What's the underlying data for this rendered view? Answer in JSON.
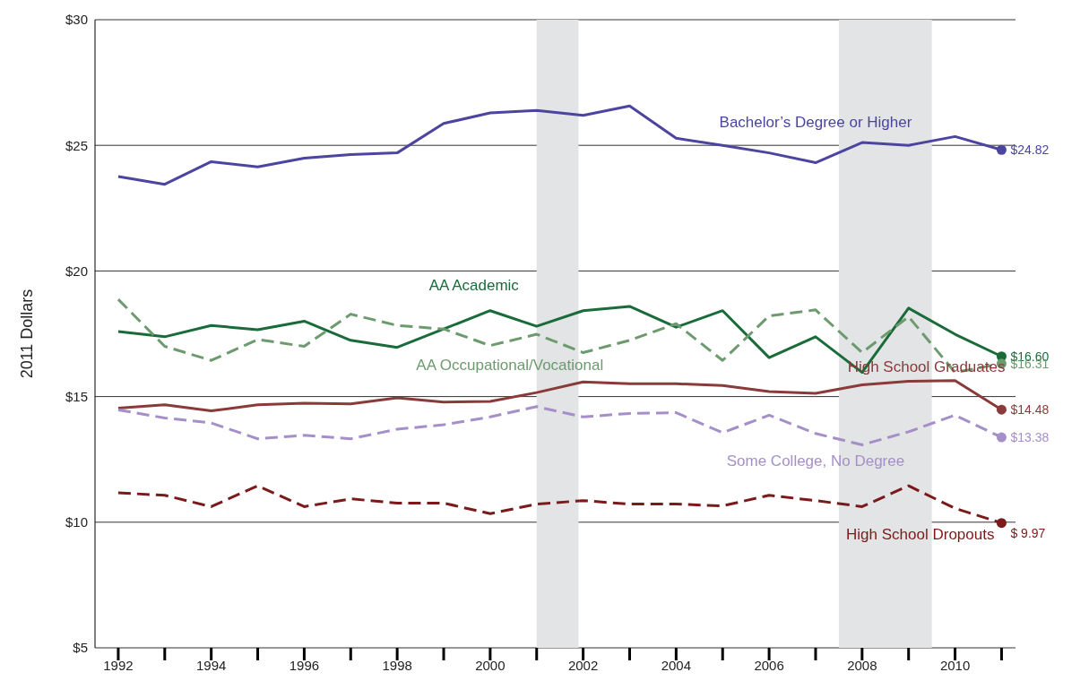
{
  "chart_data": {
    "type": "line",
    "ylabel": "2011 Dollars",
    "x": [
      1992,
      1993,
      1994,
      1995,
      1996,
      1997,
      1998,
      1999,
      2000,
      2001,
      2002,
      2003,
      2004,
      2005,
      2006,
      2007,
      2008,
      2009,
      2010,
      2011
    ],
    "xlim": [
      1991.5,
      2011.3
    ],
    "xticks": [
      1992,
      {
        "value": 1993,
        "label": null
      },
      1994,
      {
        "value": 1995,
        "label": null
      },
      1996,
      {
        "value": 1997,
        "label": null
      },
      1998,
      {
        "value": 1999,
        "label": null
      },
      2000,
      {
        "value": 2001,
        "label": null
      },
      2002,
      {
        "value": 2003,
        "label": null
      },
      2004,
      {
        "value": 2005,
        "label": null
      },
      2006,
      {
        "value": 2007,
        "label": null
      },
      2008,
      {
        "value": 2009,
        "label": null
      },
      2010,
      {
        "value": 2011,
        "label": null
      }
    ],
    "ylim": [
      5,
      30
    ],
    "yticks": [
      {
        "value": 5,
        "label": "$5"
      },
      {
        "value": 10,
        "label": "$10"
      },
      {
        "value": 15,
        "label": "$15"
      },
      {
        "value": 20,
        "label": "$20"
      },
      {
        "value": 25,
        "label": "$25"
      },
      {
        "value": 30,
        "label": "$30"
      }
    ],
    "grid": "y",
    "legend": false,
    "bands": [
      {
        "axis": "x",
        "from": 2001,
        "to": 2001.9,
        "color": "#e3e4e5"
      },
      {
        "axis": "x",
        "from": 2007.5,
        "to": 2009.5,
        "color": "#e3e4e5"
      }
    ],
    "series": [
      {
        "name": "Bachelor’s Degree or Higher",
        "color": "#4b45a0",
        "line_style": "solid",
        "values": [
          23.76,
          23.45,
          24.35,
          24.14,
          24.49,
          24.63,
          24.7,
          25.87,
          26.29,
          26.39,
          26.19,
          26.57,
          25.28,
          25.0,
          24.7,
          24.31,
          25.11,
          25.0,
          25.35,
          24.82
        ],
        "value_labels": [
          null,
          null,
          null,
          null,
          null,
          null,
          null,
          null,
          null,
          null,
          null,
          null,
          null,
          null,
          null,
          null,
          null,
          null,
          null,
          "$24.82"
        ]
      },
      {
        "name": "AA Academic",
        "color": "#1a6b3a",
        "line_style": "solid",
        "values": [
          17.59,
          17.38,
          17.83,
          17.66,
          18.0,
          17.24,
          16.96,
          17.69,
          18.42,
          17.8,
          18.42,
          18.59,
          17.76,
          18.42,
          16.55,
          17.38,
          15.96,
          18.52,
          17.48,
          16.6
        ],
        "value_labels": [
          null,
          null,
          null,
          null,
          null,
          null,
          null,
          null,
          null,
          null,
          null,
          null,
          null,
          null,
          null,
          null,
          null,
          null,
          null,
          "$16.60"
        ]
      },
      {
        "name": "AA Occupational/Vocational",
        "color": "#6d9a6e",
        "line_style": "dashed",
        "values": [
          18.87,
          17.0,
          16.44,
          17.27,
          17.0,
          18.28,
          17.83,
          17.69,
          17.03,
          17.48,
          16.75,
          17.24,
          17.9,
          16.44,
          18.21,
          18.45,
          16.75,
          18.18,
          15.96,
          16.31
        ],
        "value_labels": [
          null,
          null,
          null,
          null,
          null,
          null,
          null,
          null,
          null,
          null,
          null,
          null,
          null,
          null,
          null,
          null,
          null,
          null,
          null,
          "$16.31"
        ]
      },
      {
        "name": "High School Graduates",
        "color": "#8b3a3a",
        "line_style": "solid",
        "values": [
          14.54,
          14.67,
          14.43,
          14.67,
          14.74,
          14.71,
          14.95,
          14.78,
          14.81,
          15.16,
          15.58,
          15.51,
          15.51,
          15.44,
          15.2,
          15.13,
          15.47,
          15.61,
          15.64,
          14.48
        ],
        "value_labels": [
          null,
          null,
          null,
          null,
          null,
          null,
          null,
          null,
          null,
          null,
          null,
          null,
          null,
          null,
          null,
          null,
          null,
          null,
          null,
          "$14.48"
        ]
      },
      {
        "name": "Some College, No Degree",
        "color": "#a58fc8",
        "line_style": "dashed",
        "values": [
          14.47,
          14.15,
          13.95,
          13.32,
          13.46,
          13.32,
          13.7,
          13.88,
          14.19,
          14.6,
          14.19,
          14.33,
          14.36,
          13.56,
          14.26,
          13.53,
          13.08,
          13.6,
          14.26,
          13.38
        ],
        "value_labels": [
          null,
          null,
          null,
          null,
          null,
          null,
          null,
          null,
          null,
          null,
          null,
          null,
          null,
          null,
          null,
          null,
          null,
          null,
          null,
          "$13.38"
        ]
      },
      {
        "name": "High School Dropouts",
        "color": "#7a1a1a",
        "line_style": "dashed",
        "values": [
          11.17,
          11.07,
          10.62,
          11.45,
          10.62,
          10.93,
          10.76,
          10.76,
          10.34,
          10.72,
          10.86,
          10.72,
          10.72,
          10.65,
          11.07,
          10.86,
          10.62,
          11.45,
          10.55,
          9.97
        ],
        "value_labels": [
          null,
          null,
          null,
          null,
          null,
          null,
          null,
          null,
          null,
          null,
          null,
          null,
          null,
          null,
          null,
          null,
          null,
          null,
          null,
          "$ 9.97"
        ]
      }
    ]
  }
}
